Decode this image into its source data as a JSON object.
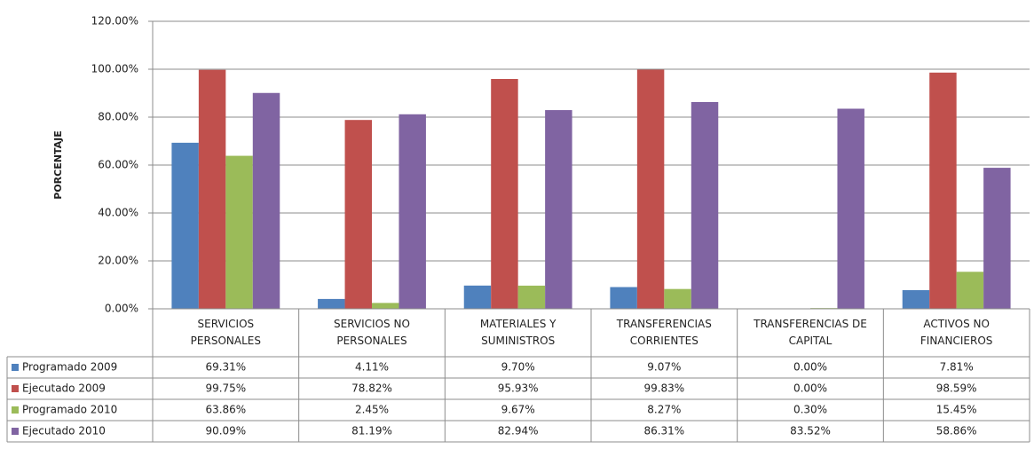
{
  "chart_data": {
    "type": "bar",
    "y_label": "PORCENTAJE",
    "categories": [
      "SERVICIOS PERSONALES",
      "SERVICIOS NO PERSONALES",
      "MATERIALES Y SUMINISTROS",
      "TRANSFERENCIAS CORRIENTES",
      "TRANSFERENCIAS DE CAPITAL",
      "ACTIVOS NO FINANCIEROS"
    ],
    "series": [
      {
        "name": "Programado 2009",
        "color": "#4f81bd",
        "values": [
          69.31,
          4.11,
          9.7,
          9.07,
          0.0,
          7.81
        ],
        "value_labels": [
          "69.31%",
          "4.11%",
          "9.70%",
          "9.07%",
          "0.00%",
          "7.81%"
        ]
      },
      {
        "name": "Ejecutado 2009",
        "color": "#c0504d",
        "values": [
          99.75,
          78.82,
          95.93,
          99.83,
          0.0,
          98.59
        ],
        "value_labels": [
          "99.75%",
          "78.82%",
          "95.93%",
          "99.83%",
          "0.00%",
          "98.59%"
        ]
      },
      {
        "name": "Programado 2010",
        "color": "#9bbb59",
        "values": [
          63.86,
          2.45,
          9.67,
          8.27,
          0.3,
          15.45
        ],
        "value_labels": [
          "63.86%",
          "2.45%",
          "9.67%",
          "8.27%",
          "0.30%",
          "15.45%"
        ]
      },
      {
        "name": "Ejecutado 2010",
        "color": "#8064a2",
        "values": [
          90.09,
          81.19,
          82.94,
          86.31,
          83.52,
          58.86
        ],
        "value_labels": [
          "90.09%",
          "81.19%",
          "82.94%",
          "86.31%",
          "83.52%",
          "58.86%"
        ]
      }
    ],
    "ylim": [
      0,
      120
    ],
    "yticks": [
      {
        "value": 0,
        "label": "0.00%"
      },
      {
        "value": 20,
        "label": "20.00%"
      },
      {
        "value": 40,
        "label": "40.00%"
      },
      {
        "value": 60,
        "label": "60.00%"
      },
      {
        "value": 80,
        "label": "80.00%"
      },
      {
        "value": 100,
        "label": "100.00%"
      },
      {
        "value": 120,
        "label": "120.00%"
      }
    ],
    "grid": true
  }
}
